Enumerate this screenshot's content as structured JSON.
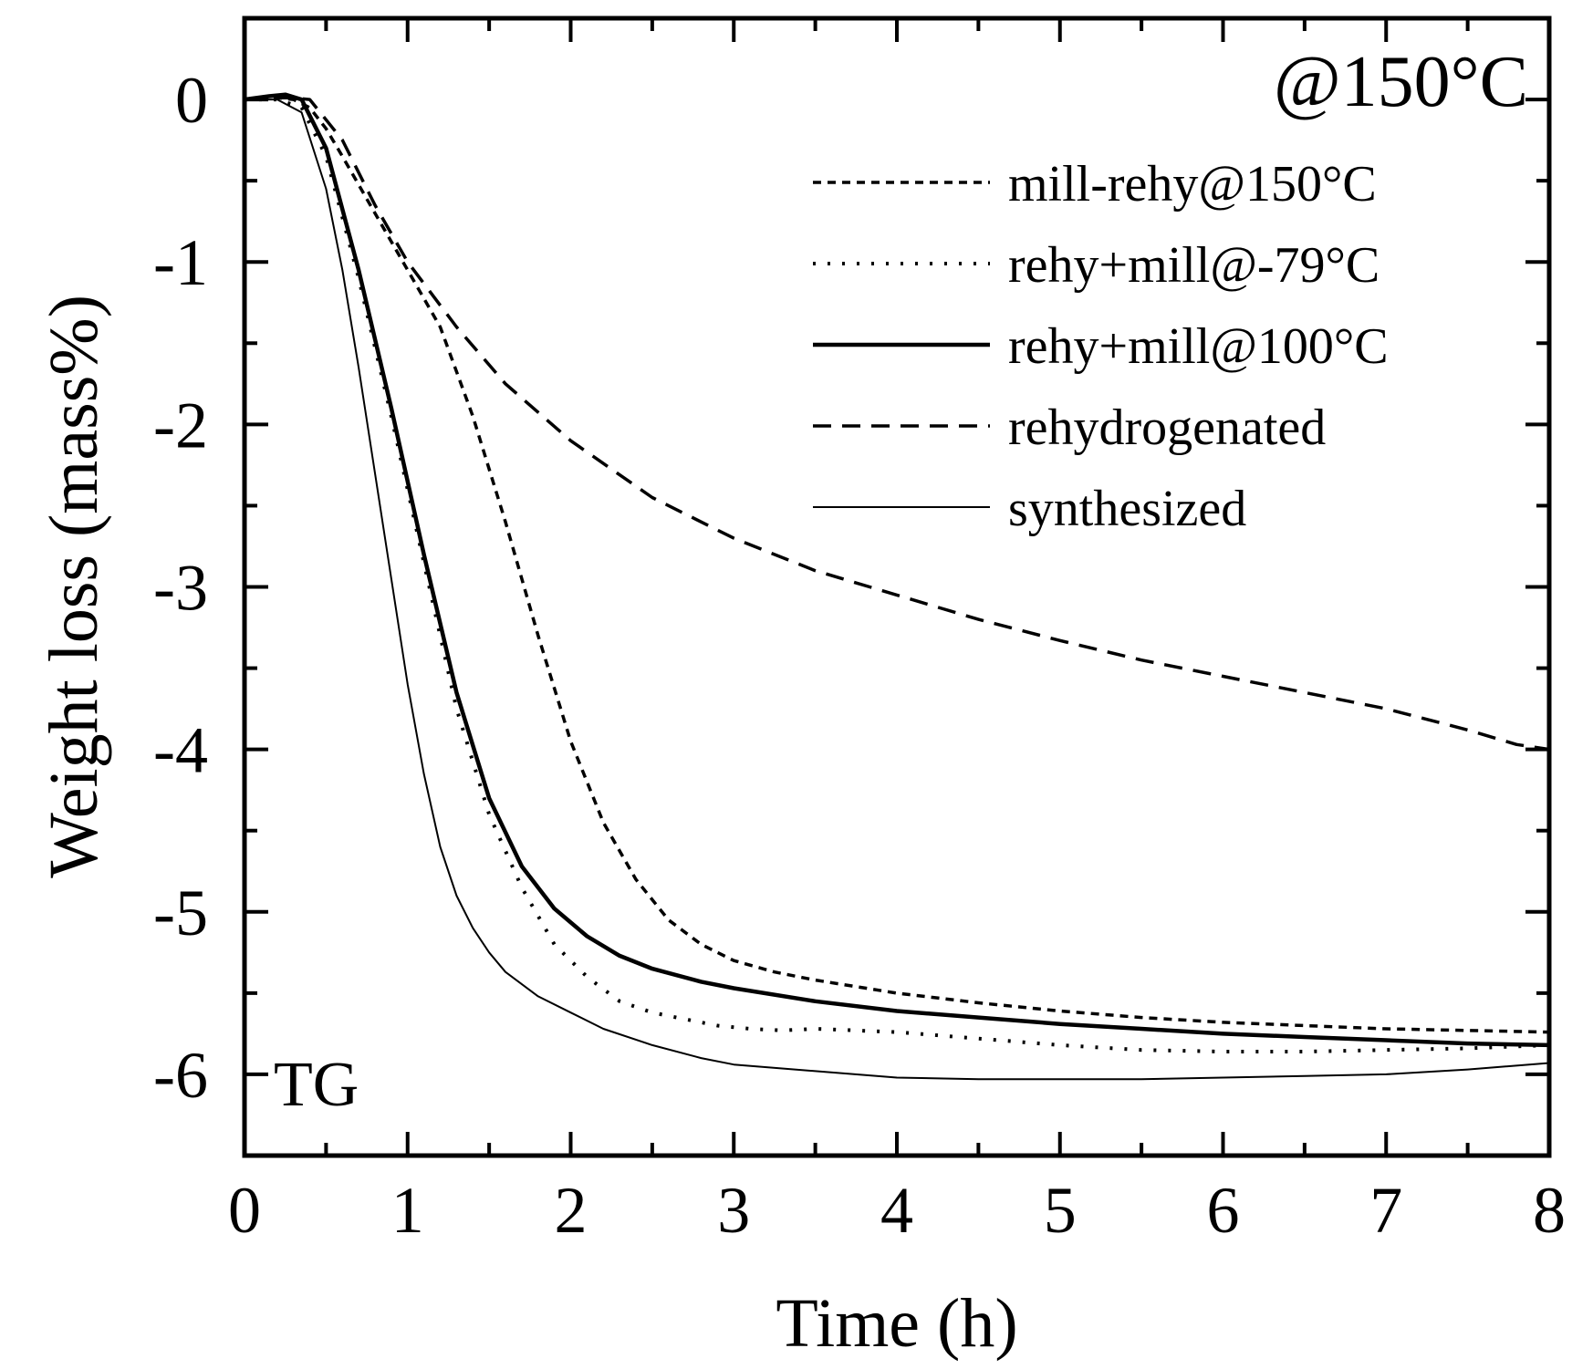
{
  "chart_data": {
    "type": "line",
    "xlabel": "Time (h)",
    "ylabel": "Weight loss (mass%)",
    "xlim": [
      0,
      8
    ],
    "ylim": [
      -6.5,
      0.5
    ],
    "x_ticks": [
      0,
      1,
      2,
      3,
      4,
      5,
      6,
      7,
      8
    ],
    "x_tick_labels": [
      "0",
      "1",
      "2",
      "3",
      "4",
      "5",
      "6",
      "7",
      "8"
    ],
    "y_ticks": [
      0,
      -1,
      -2,
      -3,
      -4,
      -5,
      -6
    ],
    "y_tick_labels": [
      "0",
      "-1",
      "-2",
      "-3",
      "-4",
      "-5",
      "-6"
    ],
    "grid": false,
    "legend_position": "top-right",
    "annotations": {
      "condition": "@150°C",
      "method": "TG"
    },
    "series": [
      {
        "name": "mill-rehy@150°C",
        "style": "short-dash",
        "x": [
          0,
          0.1,
          0.2,
          0.3,
          0.4,
          0.5,
          0.6,
          0.8,
          1.0,
          1.2,
          1.4,
          1.6,
          1.8,
          2.0,
          2.2,
          2.4,
          2.6,
          2.8,
          3.0,
          3.25,
          3.5,
          4.0,
          4.5,
          5.0,
          5.5,
          6.0,
          6.5,
          7.0,
          7.5,
          8.0
        ],
        "y": [
          0,
          0,
          0.01,
          0,
          -0.05,
          -0.18,
          -0.35,
          -0.7,
          -1.05,
          -1.4,
          -1.95,
          -2.6,
          -3.3,
          -3.95,
          -4.45,
          -4.8,
          -5.05,
          -5.2,
          -5.3,
          -5.37,
          -5.42,
          -5.5,
          -5.56,
          -5.61,
          -5.65,
          -5.68,
          -5.7,
          -5.72,
          -5.73,
          -5.74
        ]
      },
      {
        "name": "rehy+mill@-79°C",
        "style": "dotted",
        "x": [
          0,
          0.2,
          0.35,
          0.5,
          0.7,
          0.9,
          1.1,
          1.3,
          1.5,
          1.7,
          1.9,
          2.1,
          2.3,
          2.5,
          2.7,
          2.9,
          3.1,
          3.3,
          3.5,
          4.0,
          4.5,
          5.0,
          5.5,
          6.0,
          6.5,
          7.0,
          7.5,
          8.0
        ],
        "y": [
          0,
          0,
          -0.05,
          -0.35,
          -1.1,
          -1.95,
          -2.85,
          -3.75,
          -4.4,
          -4.85,
          -5.2,
          -5.4,
          -5.55,
          -5.62,
          -5.66,
          -5.7,
          -5.72,
          -5.73,
          -5.72,
          -5.74,
          -5.78,
          -5.82,
          -5.85,
          -5.86,
          -5.86,
          -5.85,
          -5.84,
          -5.82
        ]
      },
      {
        "name": "rehy+mill@100°C",
        "style": "solid",
        "x": [
          0,
          0.15,
          0.25,
          0.35,
          0.5,
          0.7,
          0.9,
          1.1,
          1.3,
          1.5,
          1.7,
          1.9,
          2.1,
          2.3,
          2.5,
          2.8,
          3.0,
          3.5,
          4.0,
          4.5,
          5.0,
          5.5,
          6.0,
          6.5,
          7.0,
          7.5,
          8.0
        ],
        "y": [
          0,
          0.02,
          0.03,
          0,
          -0.3,
          -1.05,
          -1.9,
          -2.8,
          -3.65,
          -4.3,
          -4.72,
          -4.98,
          -5.15,
          -5.27,
          -5.35,
          -5.43,
          -5.47,
          -5.55,
          -5.61,
          -5.65,
          -5.69,
          -5.72,
          -5.75,
          -5.77,
          -5.79,
          -5.81,
          -5.82
        ]
      },
      {
        "name": "rehydrogenated",
        "style": "long-dash",
        "x": [
          0,
          0.2,
          0.3,
          0.4,
          0.6,
          0.8,
          1.0,
          1.3,
          1.6,
          2.0,
          2.5,
          3.0,
          3.5,
          4.0,
          4.5,
          5.0,
          5.5,
          6.0,
          6.5,
          7.0,
          7.5,
          7.8,
          8.0
        ],
        "y": [
          0,
          0.01,
          0.01,
          0,
          -0.25,
          -0.65,
          -1.0,
          -1.4,
          -1.75,
          -2.1,
          -2.45,
          -2.7,
          -2.9,
          -3.05,
          -3.2,
          -3.33,
          -3.45,
          -3.55,
          -3.65,
          -3.75,
          -3.88,
          -3.97,
          -4.0
        ]
      },
      {
        "name": "synthesized",
        "style": "thin-solid",
        "x": [
          0,
          0.2,
          0.35,
          0.5,
          0.6,
          0.7,
          0.8,
          0.9,
          1.0,
          1.1,
          1.2,
          1.3,
          1.4,
          1.5,
          1.6,
          1.8,
          2.0,
          2.2,
          2.5,
          2.8,
          3.0,
          3.5,
          4.0,
          4.5,
          5.0,
          5.5,
          6.0,
          6.5,
          7.0,
          7.5,
          8.0
        ],
        "y": [
          0,
          0,
          -0.08,
          -0.55,
          -1.05,
          -1.65,
          -2.3,
          -2.95,
          -3.6,
          -4.15,
          -4.6,
          -4.9,
          -5.1,
          -5.25,
          -5.37,
          -5.52,
          -5.62,
          -5.72,
          -5.82,
          -5.9,
          -5.94,
          -5.98,
          -6.02,
          -6.03,
          -6.03,
          -6.03,
          -6.02,
          -6.01,
          -6.0,
          -5.97,
          -5.93
        ]
      }
    ]
  }
}
